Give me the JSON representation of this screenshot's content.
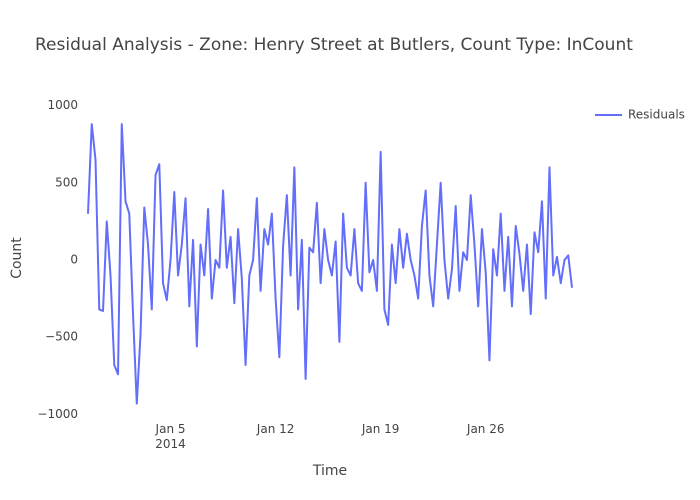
{
  "chart_data": {
    "type": "line",
    "title": "Residual Analysis - Zone: Henry Street at Butlers, Count Type: InCount",
    "x_label": "Time",
    "y_label": "Count",
    "x": [
      "2013-12-30 12:00",
      "2013-12-30 18:00",
      "2013-12-31 00:00",
      "2013-12-31 06:00",
      "2013-12-31 12:00",
      "2013-12-31 18:00",
      "2014-01-01 00:00",
      "2014-01-01 06:00",
      "2014-01-01 12:00",
      "2014-01-01 18:00",
      "2014-01-02 00:00",
      "2014-01-02 06:00",
      "2014-01-02 12:00",
      "2014-01-02 18:00",
      "2014-01-03 00:00",
      "2014-01-03 06:00",
      "2014-01-03 12:00",
      "2014-01-03 18:00",
      "2014-01-04 00:00",
      "2014-01-04 06:00",
      "2014-01-04 12:00",
      "2014-01-04 18:00",
      "2014-01-05 00:00",
      "2014-01-05 06:00",
      "2014-01-05 12:00",
      "2014-01-05 18:00",
      "2014-01-06 00:00",
      "2014-01-06 06:00",
      "2014-01-06 12:00",
      "2014-01-06 18:00",
      "2014-01-07 00:00",
      "2014-01-07 06:00",
      "2014-01-07 12:00",
      "2014-01-07 18:00",
      "2014-01-08 00:00",
      "2014-01-08 06:00",
      "2014-01-08 12:00",
      "2014-01-08 18:00",
      "2014-01-09 00:00",
      "2014-01-09 06:00",
      "2014-01-09 12:00",
      "2014-01-09 18:00",
      "2014-01-10 00:00",
      "2014-01-10 06:00",
      "2014-01-10 12:00",
      "2014-01-10 18:00",
      "2014-01-11 00:00",
      "2014-01-11 06:00",
      "2014-01-11 12:00",
      "2014-01-11 18:00",
      "2014-01-12 00:00",
      "2014-01-12 06:00",
      "2014-01-12 12:00",
      "2014-01-12 18:00",
      "2014-01-13 00:00",
      "2014-01-13 06:00",
      "2014-01-13 12:00",
      "2014-01-13 18:00",
      "2014-01-14 00:00",
      "2014-01-14 06:00",
      "2014-01-14 12:00",
      "2014-01-14 18:00",
      "2014-01-15 00:00",
      "2014-01-15 06:00",
      "2014-01-15 12:00",
      "2014-01-15 18:00",
      "2014-01-16 00:00",
      "2014-01-16 06:00",
      "2014-01-16 12:00",
      "2014-01-16 18:00",
      "2014-01-17 00:00",
      "2014-01-17 06:00",
      "2014-01-17 12:00",
      "2014-01-17 18:00",
      "2014-01-18 00:00",
      "2014-01-18 06:00",
      "2014-01-18 12:00",
      "2014-01-18 18:00",
      "2014-01-19 00:00",
      "2014-01-19 06:00",
      "2014-01-19 12:00",
      "2014-01-19 18:00",
      "2014-01-20 00:00",
      "2014-01-20 06:00",
      "2014-01-20 12:00",
      "2014-01-20 18:00",
      "2014-01-21 00:00",
      "2014-01-21 06:00",
      "2014-01-21 12:00",
      "2014-01-21 18:00",
      "2014-01-22 00:00",
      "2014-01-22 06:00",
      "2014-01-22 12:00",
      "2014-01-22 18:00",
      "2014-01-23 00:00",
      "2014-01-23 06:00",
      "2014-01-23 12:00",
      "2014-01-23 18:00",
      "2014-01-24 00:00",
      "2014-01-24 06:00",
      "2014-01-24 12:00",
      "2014-01-24 18:00",
      "2014-01-25 00:00",
      "2014-01-25 06:00",
      "2014-01-25 12:00",
      "2014-01-25 18:00",
      "2014-01-26 00:00",
      "2014-01-26 06:00",
      "2014-01-26 12:00",
      "2014-01-26 18:00",
      "2014-01-27 00:00",
      "2014-01-27 06:00",
      "2014-01-27 12:00",
      "2014-01-27 18:00",
      "2014-01-28 00:00",
      "2014-01-28 06:00",
      "2014-01-28 12:00",
      "2014-01-28 18:00",
      "2014-01-29 00:00",
      "2014-01-29 06:00",
      "2014-01-29 12:00",
      "2014-01-29 18:00",
      "2014-01-30 00:00",
      "2014-01-30 06:00",
      "2014-01-30 12:00",
      "2014-01-30 18:00",
      "2014-01-31 00:00",
      "2014-01-31 06:00",
      "2014-01-31 12:00",
      "2014-01-31 18:00"
    ],
    "series": [
      {
        "name": "Residuals",
        "color": "#636efa",
        "values": [
          300,
          880,
          650,
          -320,
          -330,
          250,
          -100,
          -680,
          -740,
          880,
          380,
          300,
          -350,
          -930,
          -480,
          340,
          100,
          -320,
          550,
          620,
          -150,
          -260,
          0,
          440,
          -100,
          100,
          400,
          -300,
          130,
          -560,
          100,
          -100,
          330,
          -250,
          0,
          -50,
          450,
          -50,
          150,
          -280,
          200,
          -120,
          -680,
          -100,
          0,
          400,
          -200,
          200,
          100,
          300,
          -250,
          -630,
          90,
          420,
          -100,
          600,
          -320,
          130,
          -770,
          80,
          50,
          370,
          -150,
          200,
          0,
          -100,
          120,
          -530,
          300,
          -50,
          -100,
          200,
          -150,
          -200,
          500,
          -80,
          0,
          -200,
          700,
          -320,
          -420,
          100,
          -150,
          200,
          -50,
          170,
          0,
          -100,
          -250,
          220,
          450,
          -100,
          -300,
          100,
          500,
          0,
          -250,
          -60,
          350,
          -200,
          50,
          0,
          420,
          100,
          -300,
          200,
          -80,
          -650,
          70,
          -100,
          300,
          -200,
          150,
          -300,
          220,
          40,
          -200,
          100,
          -350,
          180,
          50,
          380,
          -250,
          600,
          -100,
          20,
          -150,
          0,
          30,
          -180
        ]
      }
    ],
    "xlim": [
      "2013-12-30 12:00",
      "2014-01-31 18:00"
    ],
    "xticks": [
      {
        "value": "2014-01-05 00:00",
        "label": "Jan 5\n2014"
      },
      {
        "value": "2014-01-12 00:00",
        "label": "Jan 12"
      },
      {
        "value": "2014-01-19 00:00",
        "label": "Jan 19"
      },
      {
        "value": "2014-01-26 00:00",
        "label": "Jan 26"
      }
    ],
    "ylim": [
      -1036,
      1036
    ],
    "yticks": [
      {
        "value": -1000,
        "label": "−1000"
      },
      {
        "value": -500,
        "label": "−500"
      },
      0,
      500,
      1000
    ],
    "grid": false,
    "legend": "top-right"
  }
}
